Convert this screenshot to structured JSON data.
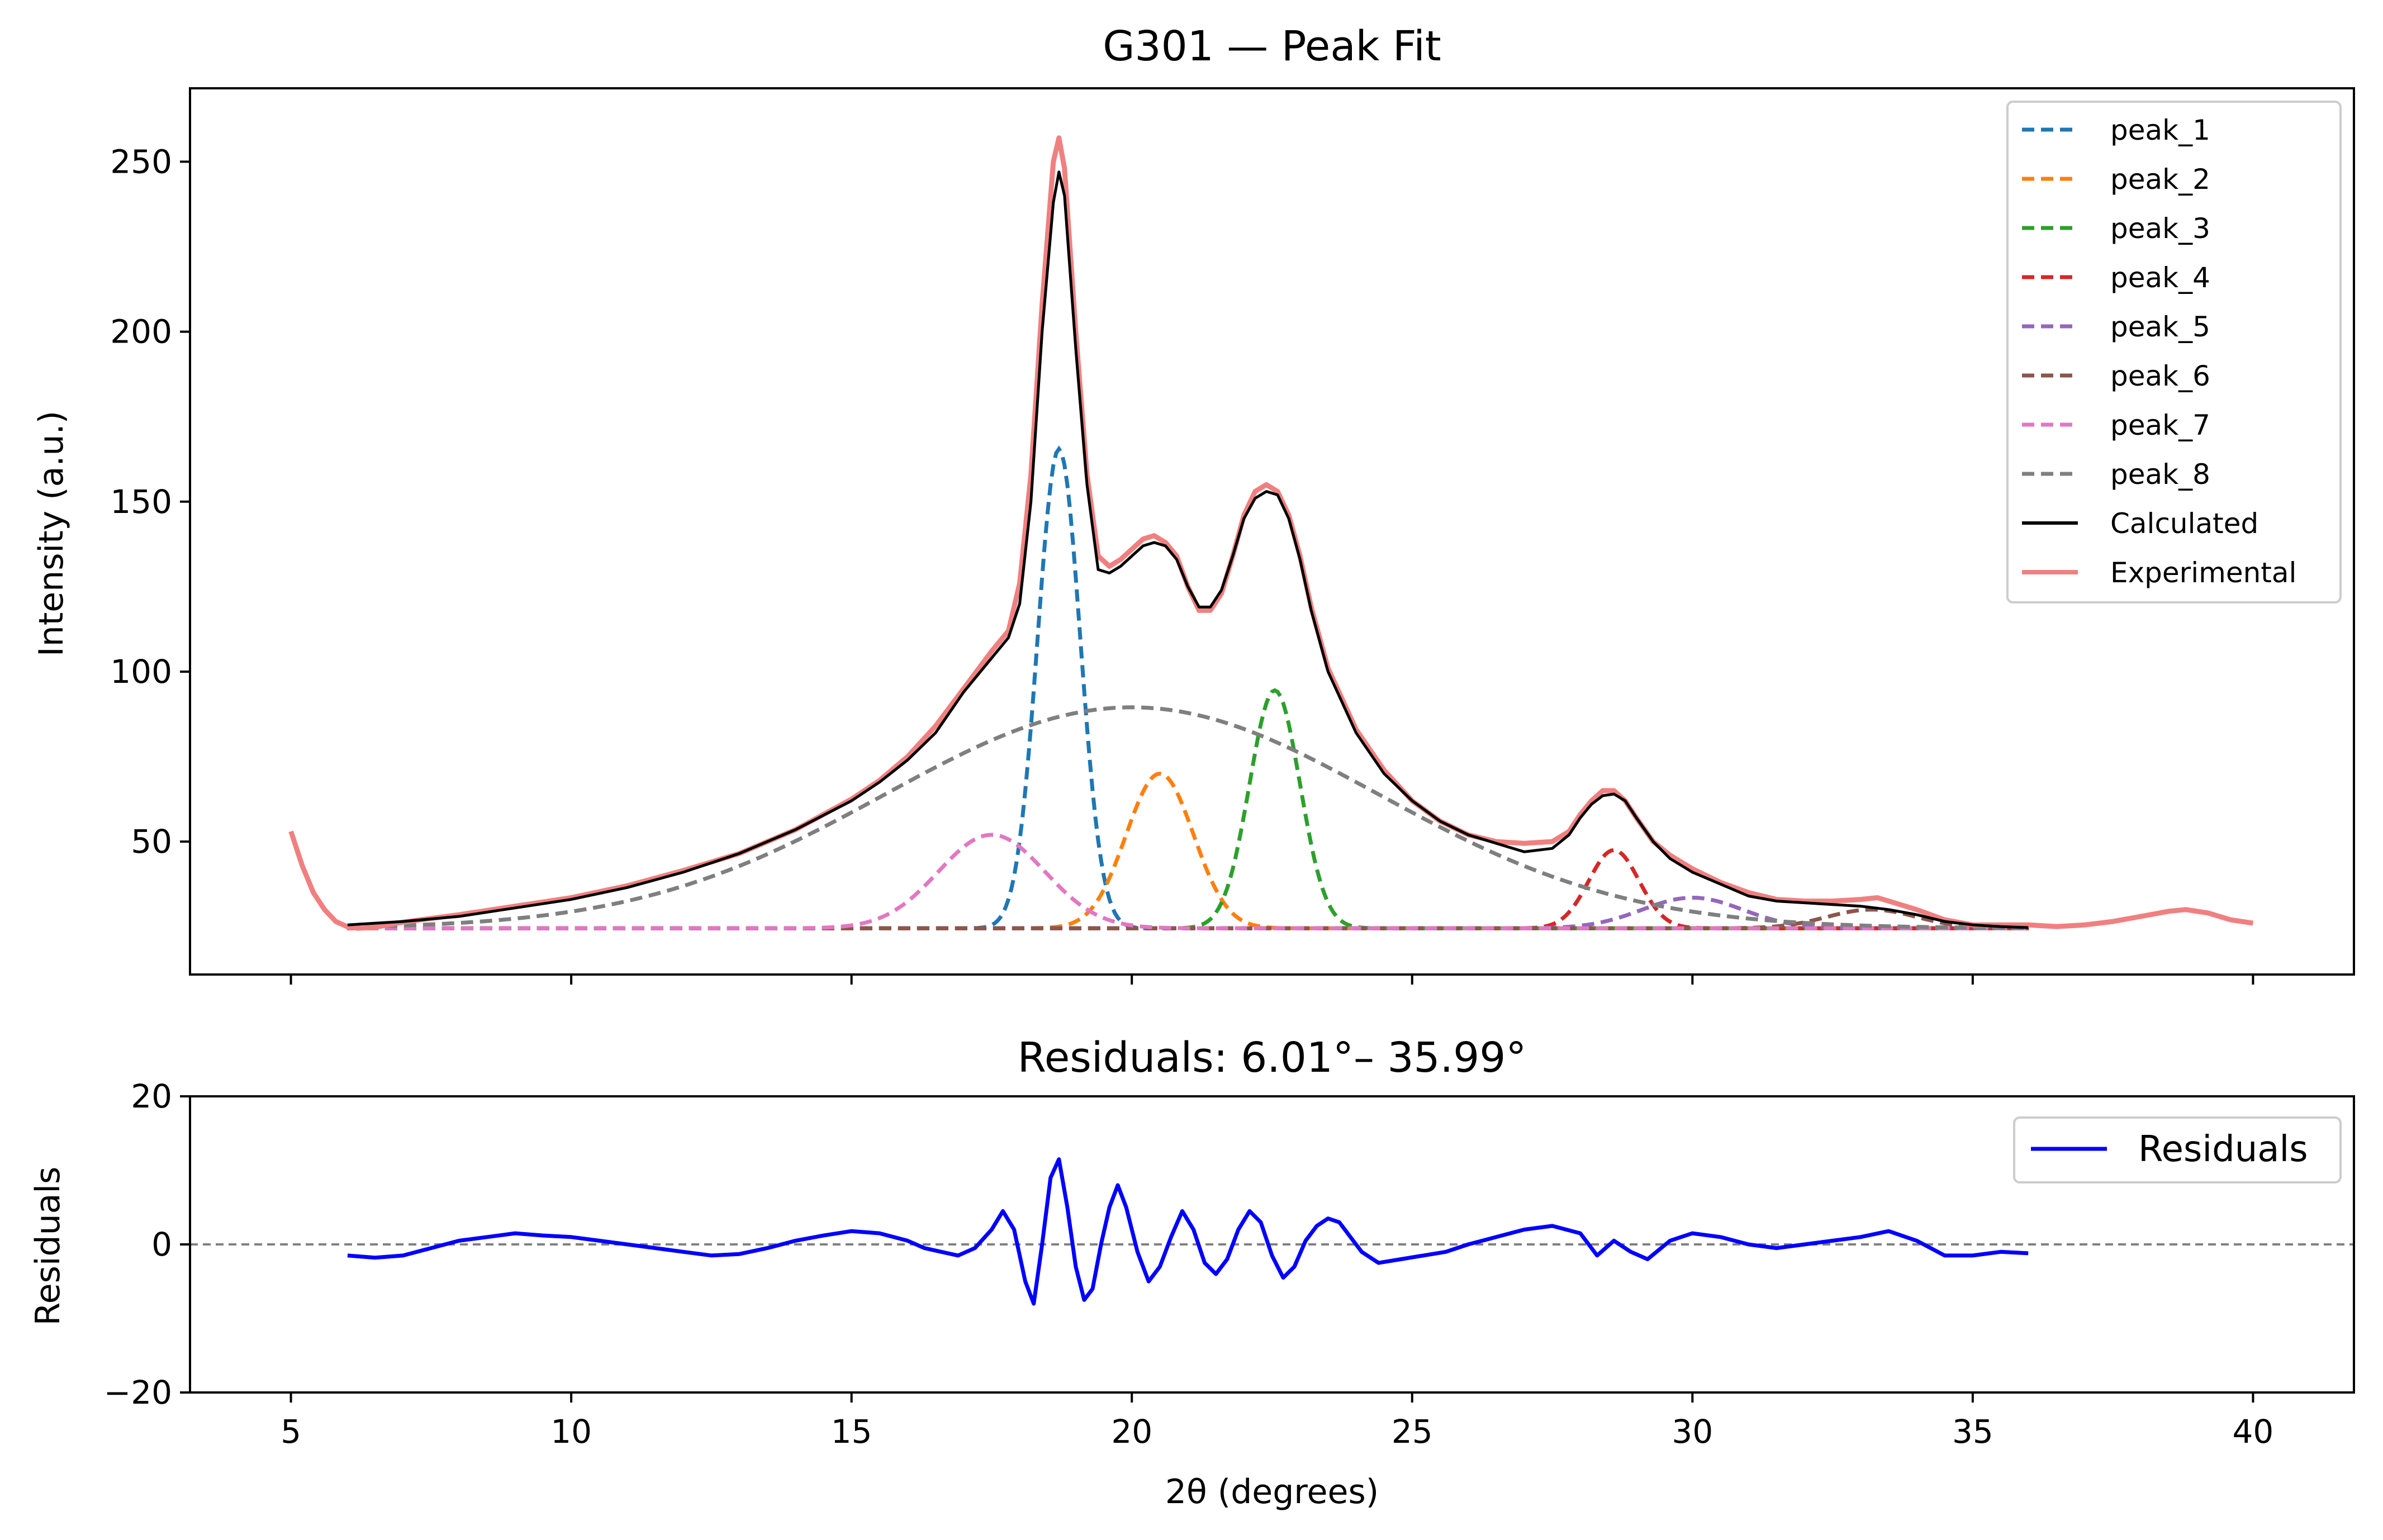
{
  "chart_data": [
    {
      "type": "line",
      "title": "G301 — Peak Fit",
      "xlabel": "",
      "ylabel": "Intensity (a.u.)",
      "xlim": [
        3.2,
        41.8
      ],
      "ylim": [
        10.9,
        271.6
      ],
      "xticks": [
        5,
        10,
        15,
        20,
        25,
        30,
        35,
        40
      ],
      "yticks": [
        50,
        100,
        150,
        200,
        250
      ],
      "ytick_labels": [
        "50",
        "100",
        "150",
        "200",
        "250"
      ],
      "grid": false,
      "legend_position": "top-right",
      "baseline": 24.5,
      "peaks": [
        {
          "name": "peak_1",
          "center": 18.7,
          "amplitude": 141,
          "sigma": 0.38,
          "color": "#1f77b4"
        },
        {
          "name": "peak_2",
          "center": 20.5,
          "amplitude": 45.5,
          "sigma": 0.6,
          "color": "#ff7f0e"
        },
        {
          "name": "peak_3",
          "center": 22.55,
          "amplitude": 70,
          "sigma": 0.45,
          "color": "#2ca02c"
        },
        {
          "name": "peak_4",
          "center": 28.6,
          "amplitude": 23,
          "sigma": 0.45,
          "color": "#d62728"
        },
        {
          "name": "peak_5",
          "center": 30.0,
          "amplitude": 9,
          "sigma": 0.9,
          "color": "#9467bd"
        },
        {
          "name": "peak_6",
          "center": 33.2,
          "amplitude": 5.5,
          "sigma": 0.8,
          "color": "#8c564b"
        },
        {
          "name": "peak_7",
          "center": 17.5,
          "amplitude": 27.5,
          "sigma": 0.95,
          "color": "#e377c2"
        },
        {
          "name": "peak_8",
          "center": 20.0,
          "amplitude": 65,
          "sigma": 4.4,
          "color": "#7f7f7f"
        }
      ],
      "calculated": {
        "name": "Calculated",
        "color": "#000000",
        "x": [
          6.01,
          7,
          8,
          9,
          10,
          11,
          12,
          13,
          14,
          15,
          15.5,
          16,
          16.5,
          17,
          17.5,
          17.8,
          18.0,
          18.2,
          18.4,
          18.6,
          18.7,
          18.8,
          19.0,
          19.2,
          19.4,
          19.6,
          19.8,
          20.0,
          20.2,
          20.4,
          20.6,
          20.8,
          21.0,
          21.2,
          21.4,
          21.6,
          21.8,
          22.0,
          22.2,
          22.4,
          22.6,
          22.8,
          23.0,
          23.2,
          23.5,
          24.0,
          24.5,
          25.0,
          25.5,
          26.0,
          26.5,
          27.0,
          27.5,
          27.8,
          28.0,
          28.2,
          28.4,
          28.6,
          28.8,
          29.0,
          29.3,
          29.6,
          30.0,
          30.5,
          31.0,
          31.5,
          32.0,
          32.5,
          33.0,
          33.5,
          34.0,
          34.5,
          35.0,
          35.5,
          35.99
        ],
        "y": [
          25.5,
          26.5,
          28,
          30.5,
          33,
          36.5,
          41,
          46.5,
          53.5,
          62,
          67.5,
          74,
          82,
          94,
          104,
          110,
          120,
          150,
          200,
          238,
          247,
          240,
          195,
          155,
          130,
          129,
          131,
          134,
          137,
          138,
          137,
          133,
          125,
          119,
          119,
          124,
          134,
          145,
          151,
          153,
          152,
          145,
          133,
          118,
          100,
          82,
          70,
          62,
          56,
          52,
          49.5,
          47,
          48,
          52,
          57,
          61,
          63.5,
          64,
          62,
          57,
          50,
          45,
          41,
          37.5,
          34,
          32.5,
          32,
          31.5,
          31,
          30,
          28.5,
          26.5,
          25.5,
          25,
          24.7
        ]
      },
      "experimental": {
        "name": "Experimental",
        "color": "#f08080",
        "x": [
          5.0,
          5.2,
          5.4,
          5.6,
          5.8,
          6.0,
          6.2,
          6.5,
          7,
          8,
          9,
          10,
          11,
          12,
          13,
          14,
          15,
          15.5,
          16,
          16.5,
          17,
          17.5,
          17.8,
          18.0,
          18.2,
          18.4,
          18.6,
          18.7,
          18.8,
          19.0,
          19.2,
          19.4,
          19.6,
          19.8,
          20.0,
          20.2,
          20.4,
          20.6,
          20.8,
          21.0,
          21.2,
          21.4,
          21.6,
          21.8,
          22.0,
          22.2,
          22.4,
          22.6,
          22.8,
          23.0,
          23.2,
          23.5,
          24.0,
          24.5,
          25.0,
          25.5,
          26.0,
          26.5,
          27.0,
          27.5,
          27.8,
          28.0,
          28.2,
          28.4,
          28.6,
          28.8,
          29.0,
          29.3,
          29.6,
          30.0,
          30.5,
          31.0,
          31.5,
          32.0,
          32.5,
          33.0,
          33.3,
          33.5,
          34.0,
          34.5,
          35.0,
          35.5,
          36.0,
          36.5,
          37.0,
          37.5,
          38.0,
          38.5,
          38.8,
          39.2,
          39.6,
          40.0
        ],
        "y": [
          53,
          43,
          35,
          30,
          26.5,
          25,
          24.5,
          24.8,
          26.3,
          28.5,
          31,
          33.5,
          37,
          41.5,
          46.5,
          53.5,
          62.5,
          68,
          75,
          84,
          95,
          106,
          112,
          126,
          158,
          208,
          250,
          257,
          248,
          200,
          158,
          134,
          131,
          133,
          136,
          139,
          140,
          138,
          134,
          125,
          118,
          118,
          123,
          134,
          146,
          153,
          155,
          153,
          146,
          134,
          119,
          101,
          83,
          71,
          62,
          56,
          52,
          50,
          49.5,
          50,
          53,
          58,
          62,
          65,
          65,
          62,
          57,
          50,
          46,
          42,
          38,
          35,
          33,
          32.5,
          32.5,
          33,
          33.5,
          32.5,
          30,
          27,
          25.5,
          25.5,
          25.5,
          25,
          25.5,
          26.5,
          28,
          29.5,
          30,
          29,
          27,
          26
        ]
      }
    },
    {
      "type": "line",
      "title": "Residuals: 6.01°– 35.99°",
      "xlabel": "2θ (degrees)",
      "ylabel": "Residuals",
      "xlim": [
        3.2,
        41.8
      ],
      "ylim": [
        -20,
        20
      ],
      "xticks": [
        5,
        10,
        15,
        20,
        25,
        30,
        35,
        40
      ],
      "xtick_labels": [
        "5",
        "10",
        "15",
        "20",
        "25",
        "30",
        "35",
        "40"
      ],
      "yticks": [
        -20,
        0,
        20
      ],
      "ytick_labels": [
        "−20",
        "0",
        "20"
      ],
      "grid": false,
      "zero_line": {
        "y": 0,
        "color": "#808080",
        "style": "dashed"
      },
      "legend_position": "top-right",
      "series": [
        {
          "name": "Residuals",
          "color": "#0000ff",
          "x": [
            6.01,
            6.5,
            7,
            7.5,
            8,
            8.5,
            9,
            9.5,
            10,
            10.5,
            11,
            11.5,
            12,
            12.5,
            13,
            13.5,
            14,
            14.5,
            15,
            15.5,
            16,
            16.3,
            16.6,
            16.9,
            17.2,
            17.5,
            17.7,
            17.9,
            18.1,
            18.25,
            18.4,
            18.55,
            18.7,
            18.85,
            19.0,
            19.15,
            19.3,
            19.45,
            19.6,
            19.75,
            19.9,
            20.1,
            20.3,
            20.5,
            20.7,
            20.9,
            21.1,
            21.3,
            21.5,
            21.7,
            21.9,
            22.1,
            22.3,
            22.5,
            22.7,
            22.9,
            23.1,
            23.3,
            23.5,
            23.7,
            23.9,
            24.1,
            24.4,
            24.8,
            25.2,
            25.6,
            26.0,
            26.5,
            27.0,
            27.5,
            28.0,
            28.3,
            28.6,
            28.9,
            29.2,
            29.6,
            30.0,
            30.5,
            31.0,
            31.5,
            32.0,
            32.5,
            33.0,
            33.5,
            34.0,
            34.5,
            35.0,
            35.5,
            35.99
          ],
          "y": [
            -1.5,
            -1.8,
            -1.5,
            -0.5,
            0.5,
            1.0,
            1.5,
            1.2,
            1.0,
            0.5,
            0,
            -0.5,
            -1.0,
            -1.5,
            -1.3,
            -0.5,
            0.5,
            1.2,
            1.8,
            1.5,
            0.5,
            -0.5,
            -1.0,
            -1.5,
            -0.5,
            2.0,
            4.5,
            2.0,
            -5.0,
            -8.0,
            0.0,
            9.0,
            11.5,
            5.0,
            -3.0,
            -7.5,
            -6.0,
            0.0,
            5.0,
            8.0,
            5.0,
            -1.0,
            -5.0,
            -3.0,
            1.0,
            4.5,
            2.0,
            -2.5,
            -4.0,
            -2.0,
            2.0,
            4.5,
            3.0,
            -1.5,
            -4.5,
            -3.0,
            0.5,
            2.5,
            3.5,
            3.0,
            1.0,
            -1.0,
            -2.5,
            -2.0,
            -1.5,
            -1.0,
            0.0,
            1.0,
            2.0,
            2.5,
            1.5,
            -1.5,
            0.5,
            -1.0,
            -2.0,
            0.5,
            1.5,
            1.0,
            0.0,
            -0.5,
            0.0,
            0.5,
            1.0,
            1.8,
            0.5,
            -1.5,
            -1.5,
            -1.0,
            -1.2
          ]
        }
      ]
    }
  ]
}
